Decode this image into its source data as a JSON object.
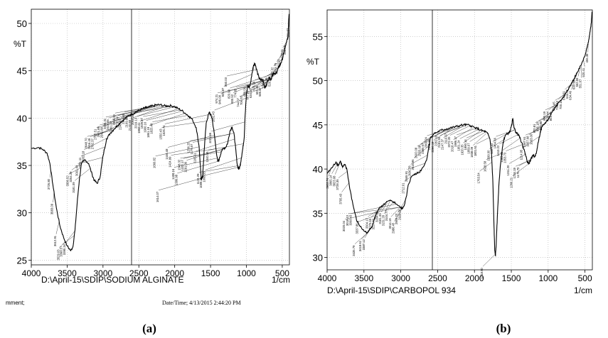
{
  "chart_data": [
    {
      "type": "line",
      "panel_label": "(a)",
      "ylabel": "%T",
      "xlabel": "1/cm",
      "file_path": "D:\\April-15\\SDIP\\SODIUM ALGINATE",
      "footer_left": "mment;",
      "footer_right": "Date/Time;    4/13/2015 2:44:20 PM",
      "xlim": [
        4000,
        400
      ],
      "ylim": [
        24.5,
        51.5
      ],
      "xticks": [
        4000,
        3500,
        3000,
        2500,
        2000,
        1500,
        1000,
        500
      ],
      "yticks": [
        25,
        30,
        35,
        40,
        45,
        50
      ],
      "grid": true,
      "series": [
        {
          "x": [
            4000,
            3900,
            3840,
            3780,
            3740,
            3700,
            3650,
            3600,
            3550,
            3500,
            3450,
            3420,
            3390,
            3360,
            3330,
            3300,
            3250,
            3200,
            3150,
            3120,
            3080,
            3040,
            3000,
            2950,
            2900,
            2850,
            2800,
            2750,
            2700,
            2650,
            2600,
            2550,
            2500,
            2450,
            2400,
            2350,
            2300,
            2250,
            2200,
            2150,
            2100,
            2050,
            2000,
            1950,
            1900,
            1850,
            1800,
            1750,
            1700,
            1660,
            1630,
            1610,
            1590,
            1560,
            1520,
            1500,
            1480,
            1450,
            1420,
            1400,
            1380,
            1350,
            1320,
            1290,
            1260,
            1230,
            1200,
            1170,
            1150,
            1130,
            1110,
            1090,
            1070,
            1050,
            1030,
            1020,
            1000,
            980,
            960,
            940,
            920,
            900,
            880,
            860,
            840,
            820,
            800,
            780,
            760,
            740,
            720,
            700,
            680,
            660,
            640,
            620,
            600,
            580,
            560,
            540,
            520,
            500,
            480,
            460,
            440,
            420,
            410,
            405
          ],
          "y": [
            36.8,
            36.9,
            36.7,
            36.3,
            35.2,
            33.0,
            30.5,
            28.6,
            27.4,
            26.5,
            26.0,
            26.4,
            28.2,
            31.0,
            33.5,
            35.2,
            35.6,
            35.2,
            34.0,
            33.4,
            33.1,
            33.8,
            36.0,
            37.8,
            38.4,
            38.8,
            39.2,
            39.6,
            39.9,
            40.2,
            40.4,
            40.6,
            40.8,
            41.0,
            41.1,
            41.2,
            41.3,
            41.4,
            41.4,
            41.3,
            41.3,
            41.3,
            41.2,
            41.0,
            40.8,
            40.5,
            40.2,
            39.8,
            39.0,
            37.0,
            33.5,
            33.8,
            36.5,
            39.5,
            40.6,
            40.4,
            40.0,
            38.5,
            36.5,
            35.4,
            35.6,
            36.5,
            36.8,
            36.9,
            37.4,
            38.6,
            39.1,
            38.2,
            36.8,
            35.2,
            34.6,
            34.9,
            35.8,
            36.8,
            38.0,
            40.0,
            42.5,
            43.5,
            43.2,
            43.8,
            44.8,
            45.6,
            45.8,
            45.2,
            44.6,
            44.2,
            44.0,
            44.1,
            43.8,
            43.2,
            43.5,
            44.0,
            44.3,
            44.0,
            44.5,
            44.8,
            44.6,
            44.8,
            45.2,
            45.5,
            45.8,
            46.2,
            46.8,
            47.5,
            48.0,
            48.6,
            50.5,
            51.0
          ]
        }
      ],
      "peak_labels": [
        "3726.80",
        "3683.09",
        "3612.91",
        "3529.03",
        "3398.57",
        "3390.34",
        "3306.52",
        "3254.29",
        "3181.09",
        "3001.43",
        "2971.11",
        "2932.18",
        "2848.70",
        "2816.49",
        "2782.37",
        "2725.51",
        "2621.89",
        "2562.89",
        "2485.31",
        "2415.46",
        "2361.23",
        "2308.20",
        "2278.14",
        "2245.03",
        "2213.55",
        "2169.86",
        "2140.88",
        "2065.33",
        "2019.13",
        "1958.41",
        "1929.87",
        "1900.16",
        "1861.19",
        "1825.49",
        "1660.82",
        "1614.07",
        "1550.43",
        "1525.74",
        "1446.48",
        "1424.99",
        "1408.16",
        "1386.98",
        "1348.32",
        "1322.17",
        "1291.36",
        "1236.25",
        "1179.57",
        "1165.11",
        "1124.29",
        "1089.25",
        "1068.55",
        "1040.56",
        "1021.66",
        "1002.43",
        "974.21",
        "946.08",
        "921.87",
        "860.03",
        "820.99",
        "800.52",
        "774.85",
        "744.07",
        "706.70",
        "689.54",
        "667.09",
        "634.34",
        "622.39",
        "603.38",
        "585.87",
        "566.54",
        "541.06",
        "520.05",
        "497.32",
        "473.79",
        "450.20",
        "433.61",
        "418.58",
        "391.57"
      ]
    },
    {
      "type": "line",
      "panel_label": "(b)",
      "ylabel": "%T",
      "xlabel": "1/cm",
      "file_path": "D:\\April-15\\SDIP\\CARBOPOL 934",
      "xlim": [
        4000,
        400
      ],
      "ylim": [
        28.6,
        58.0
      ],
      "xticks": [
        4000,
        3500,
        3000,
        2500,
        2000,
        1500,
        1000,
        500
      ],
      "yticks": [
        30,
        35,
        40,
        45,
        50,
        55
      ],
      "grid": true,
      "series": [
        {
          "x": [
            4000,
            3960,
            3920,
            3880,
            3850,
            3820,
            3790,
            3760,
            3730,
            3700,
            3650,
            3600,
            3550,
            3500,
            3450,
            3400,
            3370,
            3340,
            3300,
            3250,
            3200,
            3150,
            3100,
            3050,
            3000,
            2980,
            2950,
            2920,
            2900,
            2850,
            2800,
            2750,
            2700,
            2650,
            2620,
            2600,
            2550,
            2500,
            2450,
            2400,
            2350,
            2300,
            2250,
            2200,
            2150,
            2100,
            2050,
            2000,
            1960,
            1920,
            1880,
            1850,
            1820,
            1790,
            1770,
            1750,
            1735,
            1725,
            1715,
            1705,
            1690,
            1670,
            1650,
            1620,
            1600,
            1580,
            1550,
            1520,
            1500,
            1480,
            1460,
            1440,
            1420,
            1400,
            1380,
            1360,
            1340,
            1320,
            1300,
            1280,
            1260,
            1240,
            1220,
            1200,
            1180,
            1160,
            1140,
            1120,
            1100,
            1080,
            1050,
            1000,
            950,
            900,
            850,
            800,
            750,
            700,
            650,
            600,
            550,
            500,
            470,
            450,
            430,
            415,
            405
          ],
          "y": [
            39.5,
            39.9,
            40.3,
            40.8,
            40.4,
            40.9,
            40.2,
            40.5,
            39.9,
            38.2,
            36.0,
            34.2,
            33.5,
            33.0,
            32.8,
            33.4,
            34.0,
            34.8,
            35.5,
            35.8,
            36.2,
            36.4,
            36.3,
            36.0,
            35.6,
            35.5,
            36.0,
            37.0,
            38.2,
            39.2,
            39.5,
            39.6,
            40.2,
            41.0,
            42.5,
            43.5,
            44.0,
            44.2,
            44.4,
            44.5,
            44.6,
            44.7,
            44.8,
            44.9,
            45.0,
            45.0,
            44.9,
            44.7,
            44.6,
            44.4,
            44.3,
            44.2,
            44.0,
            43.4,
            42.0,
            38.5,
            33.5,
            30.8,
            30.2,
            31.5,
            34.5,
            38.0,
            40.3,
            42.5,
            43.4,
            43.8,
            44.0,
            44.2,
            44.8,
            45.7,
            44.6,
            44.2,
            44.0,
            43.9,
            43.5,
            43.0,
            42.5,
            42.0,
            41.4,
            40.8,
            40.6,
            41.0,
            41.4,
            41.6,
            41.4,
            41.8,
            42.8,
            43.6,
            44.4,
            44.8,
            45.1,
            45.6,
            46.4,
            47.0,
            47.6,
            48.1,
            48.7,
            49.4,
            50.2,
            51.0,
            51.8,
            52.8,
            53.8,
            54.6,
            55.6,
            56.5,
            57.8
          ]
        }
      ],
      "peak_labels": [
        "3952.74",
        "3865.14",
        "3823.08",
        "3728.35",
        "3705.43",
        "3020.04",
        "3018.43",
        "3068.43",
        "3435.79",
        "3337.86",
        "3418.61",
        "3387.12",
        "3304.17",
        "3270.65",
        "3227.79",
        "3204.34",
        "3181.33",
        "3151.28",
        "3104.77",
        "3014.19",
        "2986.45",
        "2955.23",
        "2928.00",
        "2712.01",
        "2665.91",
        "2636.78",
        "2615.96",
        "2602.08",
        "2555.08",
        "2385.67",
        "2360.24",
        "2331.10",
        "2296.19",
        "2261.18",
        "2191.55",
        "2147.37",
        "2110.07",
        "2072.20",
        "2018.47",
        "1986.17",
        "1951.24",
        "1920.35",
        "1890.14",
        "1859.07",
        "1838.09",
        "1801.61",
        "1763.54",
        "1718.90",
        "1628.58",
        "1599.00",
        "1457.32",
        "1454.66",
        "1413.22",
        "1383.33",
        "1353.73",
        "1311.20",
        "1266.21",
        "1234.19",
        "1175.70",
        "1114.95",
        "1087.61",
        "1057.68",
        "1003.00",
        "970.81",
        "935.18",
        "897.88",
        "860.19",
        "829.44",
        "801.45",
        "760.45",
        "729.63",
        "700.18",
        "674.51",
        "644.55",
        "634.46",
        "600.12",
        "562.08",
        "551.67",
        "520.41",
        "456.38"
      ]
    }
  ]
}
